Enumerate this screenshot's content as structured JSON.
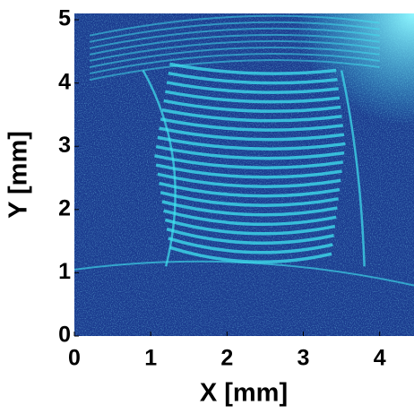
{
  "chart_data": {
    "type": "image",
    "x_label": "X [mm]",
    "y_label": "Y [mm]",
    "xlim": [
      0,
      4.45
    ],
    "ylim": [
      0,
      5.1
    ],
    "xticks": [
      0,
      1,
      2,
      3,
      4
    ],
    "yticks": [
      0,
      1,
      2,
      3,
      4,
      5
    ],
    "background_color": "#1b3b8f",
    "fringe_color": "#3fe4f0"
  }
}
